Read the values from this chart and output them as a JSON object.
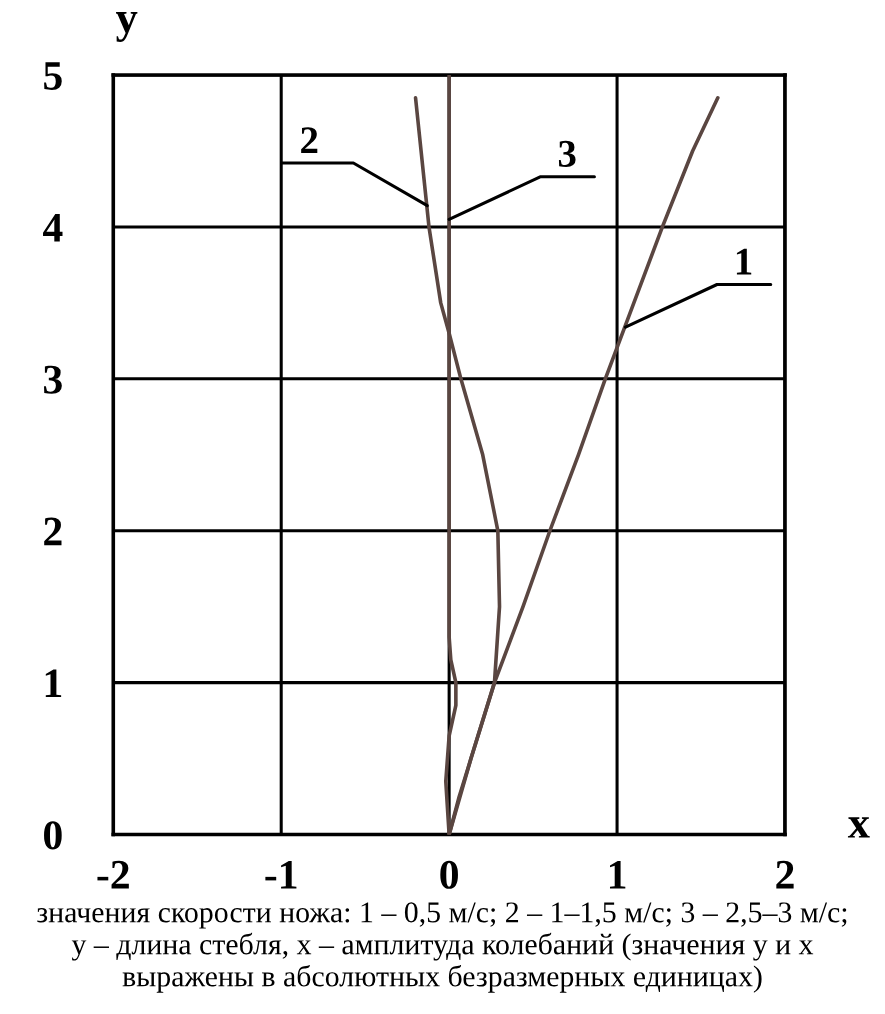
{
  "chart_data": {
    "type": "line",
    "xlabel": "x",
    "ylabel": "y",
    "xlim": [
      -2,
      2
    ],
    "ylim": [
      0,
      5
    ],
    "xticks": [
      -2,
      -1,
      0,
      1,
      2
    ],
    "yticks": [
      0,
      1,
      2,
      3,
      4,
      5
    ],
    "grid": true,
    "line_style": "solid",
    "series": [
      {
        "color": "#5a4641",
        "x": [
          0,
          0.06,
          0.13,
          0.27,
          0.44,
          0.6,
          0.77,
          0.93,
          1.1,
          1.27,
          1.45,
          1.6
        ],
        "values": [
          0,
          0.25,
          0.5,
          1,
          1.5,
          2,
          2.5,
          3,
          3.5,
          4,
          4.5,
          4.85
        ]
      },
      {
        "color": "#5a4641",
        "x": [
          0,
          0.13,
          0.27,
          0.3,
          0.29,
          0.2,
          0.07,
          0,
          -0.05,
          -0.12,
          -0.2
        ],
        "values": [
          0,
          0.5,
          1,
          1.5,
          2,
          2.5,
          3,
          3.3,
          3.5,
          4,
          4.85
        ]
      },
      {
        "color": "#5a4641",
        "x": [
          0,
          -0.02,
          0,
          0.04,
          0.04,
          0.01,
          0,
          0,
          0,
          0,
          0
        ],
        "values": [
          0,
          0.35,
          0.65,
          0.85,
          1,
          1.15,
          1.3,
          2,
          3,
          4,
          5
        ]
      }
    ],
    "annotations": [
      {
        "text": "1",
        "x": 1.05,
        "y": 3.34
      },
      {
        "text": "2",
        "x": -0.13,
        "y": 4.14
      },
      {
        "text": "3",
        "x": 0,
        "y": 4.05
      },
      "значения скорости ножа: 1 – 0,5 м/с; 2 – 1–1,5 м/с; 3 – 2,5–3 м/с;\ny – длина стебля, x – амплитуда колебаний (значения y и x\nвыражены в абсолютных безразмерных единицах)"
    ]
  }
}
